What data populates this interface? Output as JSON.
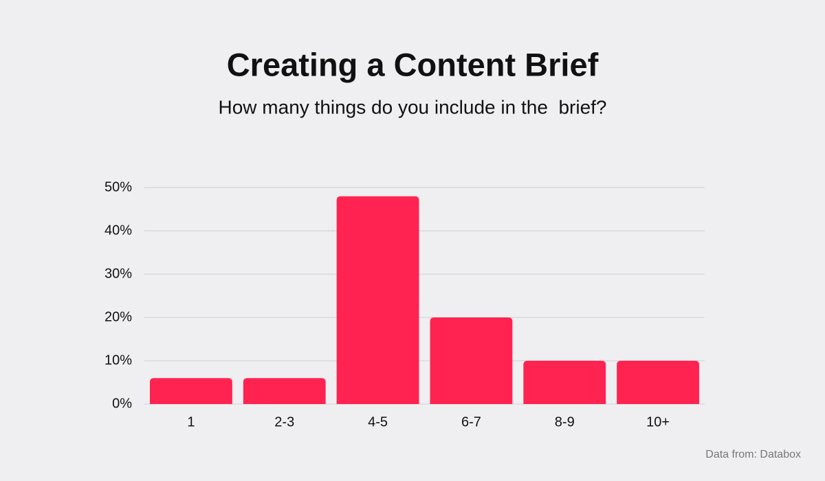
{
  "chart_data": {
    "type": "bar",
    "title": "Creating a Content Brief",
    "subtitle": "How many things do you include in the  brief?",
    "source": "Data from: Databox",
    "categories": [
      "1",
      "2-3",
      "4-5",
      "6-7",
      "8-9",
      "10+"
    ],
    "values": [
      6,
      6,
      48,
      20,
      10,
      10
    ],
    "color": "#ff2351",
    "ylim": [
      0,
      50
    ],
    "yticks": [
      {
        "value": 0,
        "label": "0%"
      },
      {
        "value": 10,
        "label": "10%"
      },
      {
        "value": 20,
        "label": "20%"
      },
      {
        "value": 30,
        "label": "30%"
      },
      {
        "value": 40,
        "label": "40%"
      },
      {
        "value": 50,
        "label": "50%"
      }
    ],
    "grid": true
  }
}
